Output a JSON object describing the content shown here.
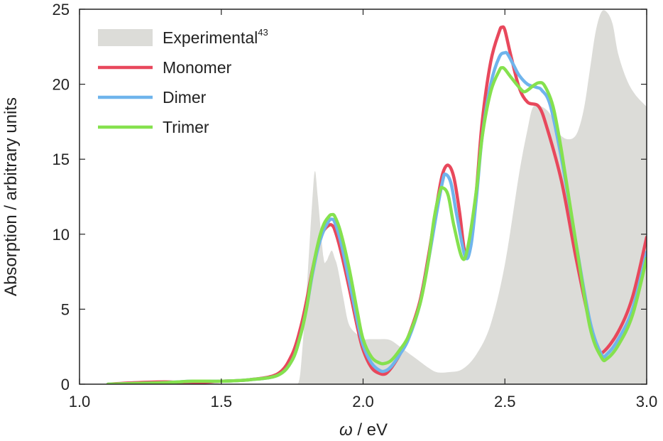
{
  "chart_data": {
    "type": "line",
    "xlabel_symbol": "ω",
    "xlabel_unit": " / eV",
    "ylabel": "Absorption / arbitrary units",
    "xlim": [
      1.0,
      3.0
    ],
    "ylim": [
      0,
      25
    ],
    "xticks": [
      1.0,
      1.5,
      2.0,
      2.5,
      3.0
    ],
    "xtick_labels": [
      "1.0",
      "1.5",
      "2.0",
      "2.5",
      "3.0"
    ],
    "yticks": [
      0,
      5,
      10,
      15,
      20,
      25
    ],
    "ytick_labels": [
      "0",
      "5",
      "10",
      "15",
      "20",
      "25"
    ],
    "legend_position": "top-left",
    "experimental": {
      "name": "Experimental",
      "ref": "43",
      "color": "#dcdcd8",
      "kind": "filled area",
      "x": [
        1.77,
        1.78,
        1.8,
        1.82,
        1.83,
        1.84,
        1.86,
        1.87,
        1.88,
        1.89,
        1.9,
        1.91,
        1.93,
        1.95,
        1.98,
        2.0,
        2.02,
        2.05,
        2.08,
        2.1,
        2.13,
        2.18,
        2.23,
        2.26,
        2.3,
        2.35,
        2.4,
        2.45,
        2.5,
        2.55,
        2.58,
        2.6,
        2.63,
        2.66,
        2.68,
        2.71,
        2.74,
        2.76,
        2.78,
        2.8,
        2.82,
        2.84,
        2.86,
        2.88,
        2.9,
        2.93,
        2.96,
        3.0
      ],
      "y": [
        0,
        1.0,
        6.0,
        12.0,
        14.2,
        12.5,
        8.5,
        8.2,
        8.6,
        8.9,
        8.4,
        7.8,
        5.8,
        4.0,
        3.3,
        3.0,
        3.0,
        3.0,
        3.0,
        2.9,
        2.5,
        1.8,
        1.1,
        0.8,
        0.8,
        1.0,
        2.0,
        4.0,
        8.0,
        14.0,
        17.0,
        18.5,
        18.5,
        18.0,
        17.0,
        16.4,
        16.4,
        17.0,
        18.5,
        21.0,
        23.5,
        24.8,
        24.8,
        24.0,
        22.0,
        20.3,
        19.3,
        18.5
      ]
    },
    "series": [
      {
        "name": "Monomer",
        "color": "#e8485c",
        "x": [
          1.1,
          1.2,
          1.3,
          1.4,
          1.5,
          1.6,
          1.7,
          1.75,
          1.78,
          1.8,
          1.82,
          1.84,
          1.86,
          1.88,
          1.89,
          1.9,
          1.92,
          1.95,
          1.98,
          2.0,
          2.03,
          2.06,
          2.08,
          2.1,
          2.13,
          2.16,
          2.2,
          2.23,
          2.26,
          2.28,
          2.3,
          2.32,
          2.34,
          2.36,
          2.38,
          2.4,
          2.42,
          2.45,
          2.48,
          2.49,
          2.5,
          2.52,
          2.55,
          2.58,
          2.62,
          2.65,
          2.7,
          2.75,
          2.8,
          2.83,
          2.85,
          2.9,
          2.95,
          3.0
        ],
        "y": [
          0.0,
          0.1,
          0.15,
          0.1,
          0.2,
          0.3,
          0.7,
          2.0,
          3.8,
          5.5,
          7.5,
          9.2,
          10.2,
          10.6,
          10.6,
          10.3,
          9.0,
          6.5,
          3.8,
          2.3,
          1.1,
          0.7,
          0.7,
          1.1,
          2.0,
          3.2,
          5.5,
          8.5,
          12.0,
          14.0,
          14.6,
          13.8,
          11.5,
          8.7,
          9.5,
          13.0,
          17.5,
          21.5,
          23.5,
          23.8,
          23.6,
          22.0,
          19.8,
          18.8,
          18.5,
          17.0,
          13.5,
          8.5,
          4.0,
          2.3,
          2.2,
          3.5,
          5.8,
          9.8
        ]
      },
      {
        "name": "Dimer",
        "color": "#6fb4ec",
        "x": [
          1.1,
          1.2,
          1.3,
          1.4,
          1.5,
          1.6,
          1.7,
          1.75,
          1.78,
          1.8,
          1.82,
          1.84,
          1.86,
          1.88,
          1.89,
          1.9,
          1.92,
          1.95,
          1.98,
          2.0,
          2.03,
          2.06,
          2.08,
          2.1,
          2.13,
          2.16,
          2.2,
          2.23,
          2.26,
          2.28,
          2.29,
          2.31,
          2.33,
          2.36,
          2.38,
          2.4,
          2.42,
          2.45,
          2.48,
          2.5,
          2.51,
          2.53,
          2.55,
          2.58,
          2.61,
          2.63,
          2.66,
          2.7,
          2.75,
          2.8,
          2.84,
          2.86,
          2.9,
          2.95,
          3.0
        ],
        "y": [
          0.0,
          0.05,
          0.1,
          0.2,
          0.2,
          0.3,
          0.6,
          1.6,
          3.3,
          5.0,
          7.2,
          9.0,
          10.2,
          10.9,
          11.0,
          10.8,
          9.6,
          7.0,
          4.2,
          2.6,
          1.4,
          0.9,
          0.9,
          1.2,
          2.0,
          3.0,
          5.3,
          8.2,
          11.5,
          13.5,
          14.0,
          13.4,
          11.3,
          8.5,
          9.2,
          12.5,
          16.5,
          20.0,
          21.8,
          22.1,
          22.0,
          21.3,
          20.6,
          20.0,
          19.8,
          19.6,
          18.6,
          15.0,
          9.5,
          4.2,
          2.0,
          2.0,
          3.0,
          5.0,
          8.8
        ]
      },
      {
        "name": "Trimer",
        "color": "#85e14e",
        "x": [
          1.1,
          1.2,
          1.3,
          1.4,
          1.5,
          1.6,
          1.7,
          1.75,
          1.78,
          1.8,
          1.82,
          1.84,
          1.86,
          1.88,
          1.89,
          1.9,
          1.92,
          1.95,
          1.98,
          2.0,
          2.03,
          2.06,
          2.08,
          2.1,
          2.13,
          2.16,
          2.2,
          2.23,
          2.25,
          2.27,
          2.28,
          2.3,
          2.32,
          2.35,
          2.37,
          2.4,
          2.42,
          2.45,
          2.48,
          2.49,
          2.5,
          2.52,
          2.55,
          2.57,
          2.6,
          2.62,
          2.64,
          2.67,
          2.7,
          2.75,
          2.8,
          2.84,
          2.86,
          2.9,
          2.95,
          3.0
        ],
        "y": [
          0.0,
          0.05,
          0.1,
          0.2,
          0.2,
          0.3,
          0.6,
          1.6,
          3.3,
          5.0,
          7.4,
          9.3,
          10.6,
          11.2,
          11.3,
          11.2,
          10.2,
          7.8,
          4.8,
          3.0,
          1.8,
          1.4,
          1.4,
          1.6,
          2.3,
          3.2,
          5.3,
          8.2,
          11.0,
          12.8,
          13.1,
          12.6,
          10.6,
          8.4,
          9.2,
          13.0,
          16.5,
          19.5,
          20.9,
          21.1,
          21.0,
          20.5,
          19.8,
          19.5,
          19.9,
          20.1,
          19.9,
          18.5,
          15.5,
          9.5,
          3.8,
          1.8,
          1.7,
          2.6,
          4.6,
          8.4
        ]
      }
    ]
  }
}
